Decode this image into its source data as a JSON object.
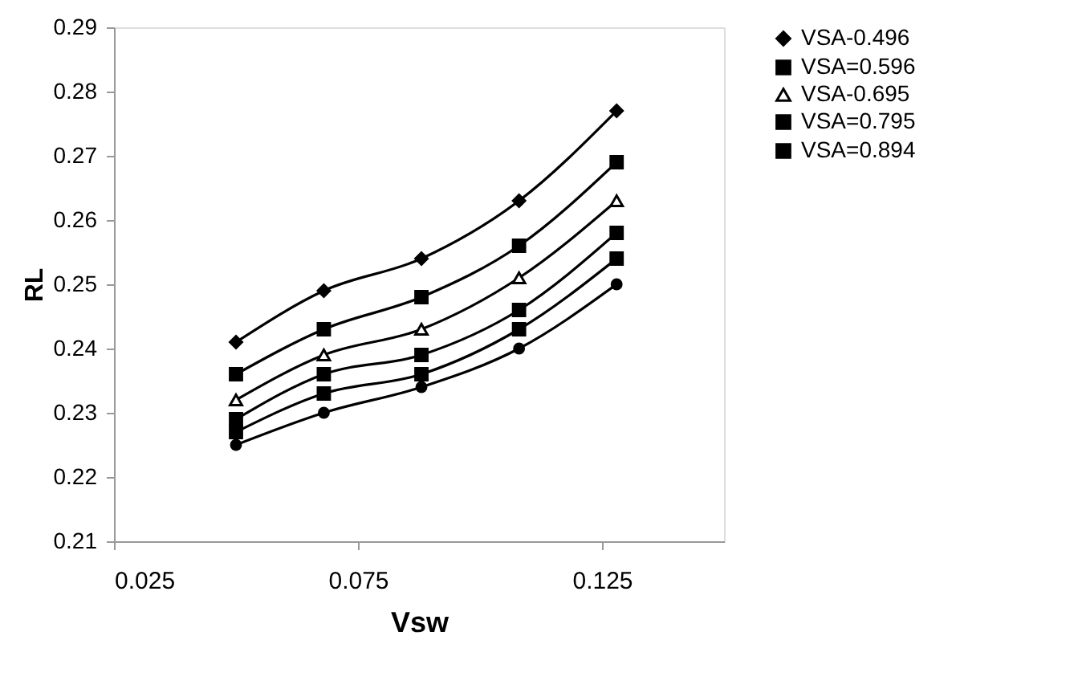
{
  "chart_data": {
    "type": "line",
    "xlabel": "Vsw",
    "ylabel": "RL",
    "x": [
      0.05,
      0.068,
      0.088,
      0.108,
      0.128
    ],
    "series": [
      {
        "name": "VSA-0.496",
        "color": "#000000",
        "marker": "diamond",
        "values": [
          0.241,
          0.249,
          0.254,
          0.263,
          0.277
        ]
      },
      {
        "name": "VSA=0.596",
        "color": "#000000",
        "marker": "square",
        "values": [
          0.236,
          0.243,
          0.248,
          0.256,
          0.269
        ]
      },
      {
        "name": "VSA-0.695",
        "color": "#000000",
        "marker": "triangle",
        "values": [
          0.232,
          0.239,
          0.243,
          0.251,
          0.263
        ]
      },
      {
        "name": "VSA=0.795",
        "color": "#000000",
        "marker": "square",
        "values": [
          0.229,
          0.236,
          0.239,
          0.246,
          0.258
        ]
      },
      {
        "name": "VSA=0.894",
        "color": "#000000",
        "marker": "square",
        "values": [
          0.227,
          0.233,
          0.236,
          0.243,
          0.254
        ]
      },
      {
        "color": "#000000",
        "marker": "circle",
        "values": [
          0.225,
          0.23,
          0.234,
          0.24,
          0.25
        ]
      }
    ],
    "xlim": [
      0.025,
      0.15
    ],
    "xticks": [
      0.025,
      0.075,
      0.125
    ],
    "ylim": [
      0.21,
      0.29
    ],
    "yticks": [
      0.21,
      0.22,
      0.23,
      0.24,
      0.25,
      0.26,
      0.27,
      0.28,
      0.29
    ],
    "grid": false,
    "legend": "right",
    "line_style": "solid"
  }
}
